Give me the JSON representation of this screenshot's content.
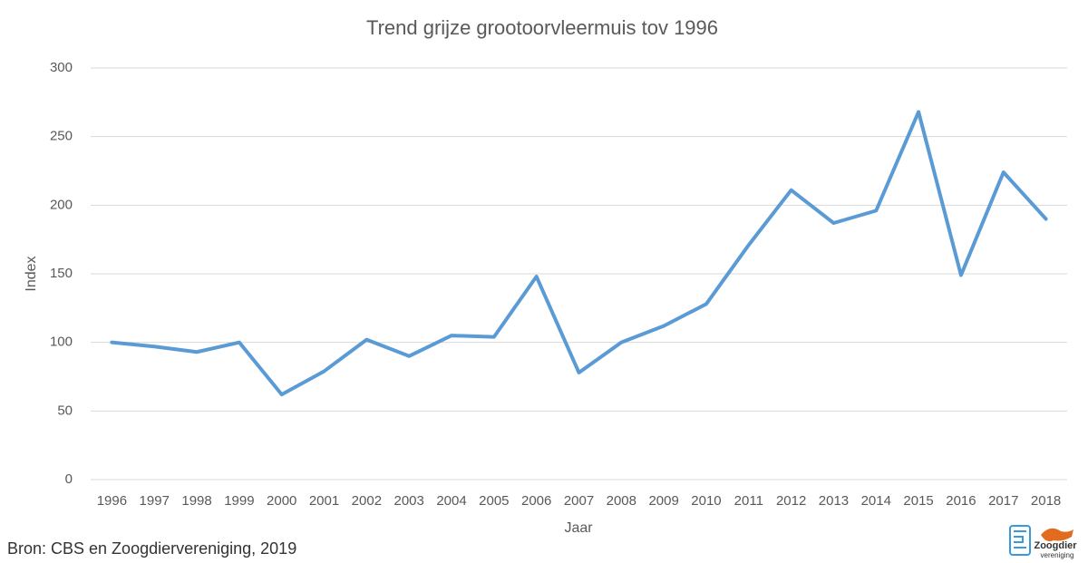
{
  "chart_data": {
    "type": "line",
    "title": "Trend grijze grootoorvleermuis tov 1996",
    "x_label": "Jaar",
    "y_label": "Index",
    "categories": [
      "1996",
      "1997",
      "1998",
      "1999",
      "2000",
      "2001",
      "2002",
      "2003",
      "2004",
      "2005",
      "2006",
      "2007",
      "2008",
      "2009",
      "2010",
      "2011",
      "2012",
      "2013",
      "2014",
      "2015",
      "2016",
      "2017",
      "2018"
    ],
    "values": [
      100,
      97,
      93,
      100,
      62,
      79,
      102,
      90,
      105,
      104,
      148,
      78,
      100,
      112,
      128,
      171,
      211,
      187,
      196,
      268,
      149,
      224,
      190
    ],
    "color": "#5b9bd5",
    "ylim": [
      0,
      300
    ],
    "yticks": [
      0,
      50,
      100,
      150,
      200,
      250,
      300
    ],
    "grid": true
  },
  "footer": {
    "source": "Bron: CBS en Zoogdiervereniging, 2019",
    "logo_text": "Zoogdier",
    "logo_subtext": "vereniging"
  }
}
